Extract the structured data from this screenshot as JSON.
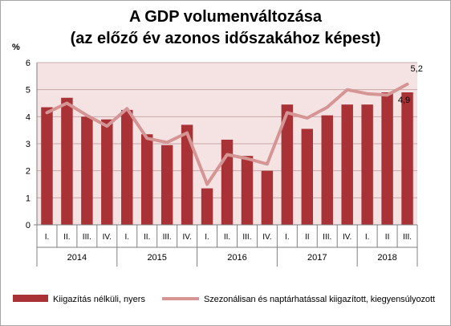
{
  "chart_data": {
    "type": "bar",
    "title_line1": "A GDP volumenváltozása",
    "title_line2": "(az előző év azonos időszakához képest)",
    "ylabel": "%",
    "ylim": [
      0,
      6
    ],
    "yticks": [
      "0",
      "1",
      "2",
      "3",
      "4",
      "5",
      "6"
    ],
    "categories": [
      "I.",
      "II.",
      "III.",
      "IV.",
      "I.",
      "II.",
      "III.",
      "IV.",
      "I.",
      "II.",
      "III.",
      "IV.",
      "I.",
      "II",
      "III.",
      "IV.",
      "I.",
      "II",
      "III."
    ],
    "years": [
      {
        "label": "2014",
        "count": 4
      },
      {
        "label": "2015",
        "count": 4
      },
      {
        "label": "2016",
        "count": 4
      },
      {
        "label": "2017",
        "count": 4
      },
      {
        "label": "2018",
        "count": 3
      }
    ],
    "series": [
      {
        "name": "Kiigazítás nélküli, nyers",
        "type": "bar",
        "color": "#a83236",
        "values": [
          4.35,
          4.7,
          4.0,
          3.9,
          4.25,
          3.35,
          2.95,
          3.7,
          1.35,
          3.15,
          2.55,
          2.0,
          4.45,
          3.55,
          4.05,
          4.45,
          4.45,
          4.9,
          4.9
        ]
      },
      {
        "name": "Szezonálisan és naptárhatással kiigazított, kiegyensúlyozott",
        "type": "line",
        "color": "#d69595",
        "values": [
          4.15,
          4.5,
          4.05,
          3.65,
          4.3,
          3.2,
          3.05,
          3.4,
          1.5,
          2.6,
          2.45,
          2.25,
          4.15,
          3.95,
          4.35,
          5.0,
          4.85,
          4.8,
          5.2
        ]
      }
    ],
    "annotations": [
      {
        "text": "5,2",
        "series": 1,
        "index": 18
      },
      {
        "text": "4,9",
        "series": 0,
        "index": 18
      }
    ],
    "plot_background": "#f5e3e3",
    "grid": true,
    "legend_position": "bottom"
  }
}
